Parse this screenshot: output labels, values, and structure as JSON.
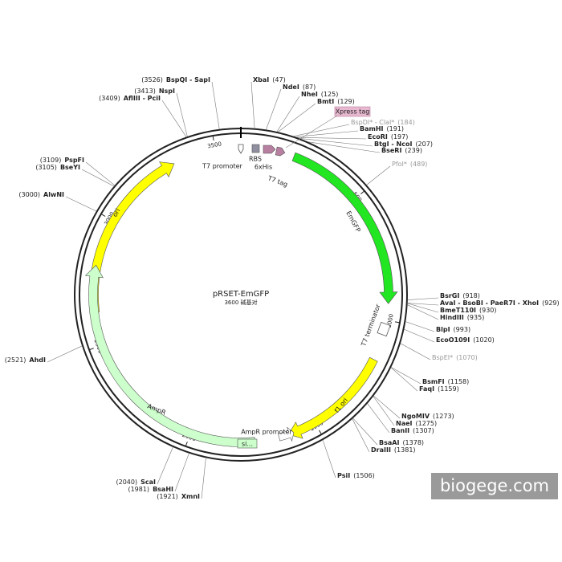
{
  "title": "pRSET-EmGFP",
  "size_label": "3600 碱基对",
  "length": 3600,
  "ticks": [
    500,
    1000,
    1500,
    2000,
    2500,
    3000,
    3500
  ],
  "features": [
    "T7 promoter",
    "RBS",
    "6xHis",
    "T7 tag",
    "Xpress tag",
    "EmGFP",
    "T7 terminator",
    "f1 ori",
    "AmpR promoter",
    "AmpR",
    "si...",
    "ori"
  ],
  "sites": [
    {
      "name": "XbaI",
      "position": "(47)"
    },
    {
      "name": "NdeI",
      "position": "(87)"
    },
    {
      "name": "NheI",
      "position": "(125)"
    },
    {
      "name": "BmtI",
      "position": "(129)"
    },
    {
      "name": "BspDI* - ClaI*",
      "position": "(184)",
      "color": "#999999"
    },
    {
      "name": "BamHI",
      "position": "(191)"
    },
    {
      "name": "EcoRI",
      "position": "(197)"
    },
    {
      "name": "BtgI - NcoI",
      "position": "(207)"
    },
    {
      "name": "BseRI",
      "position": "(239)"
    },
    {
      "name": "PfoI*",
      "position": "(489)",
      "color": "#999999"
    },
    {
      "name": "BsrGI",
      "position": "(918)"
    },
    {
      "name": "AvaI - BsoBI - PaeR7I - XhoI",
      "position": "(929)"
    },
    {
      "name": "BmeT110I",
      "position": "(930)"
    },
    {
      "name": "HindIII",
      "position": "(935)"
    },
    {
      "name": "BlpI",
      "position": "(993)"
    },
    {
      "name": "EcoO109I",
      "position": "(1020)"
    },
    {
      "name": "BspEI*",
      "position": "(1070)",
      "color": "#999999"
    },
    {
      "name": "BsmFI",
      "position": "(1158)"
    },
    {
      "name": "FaqI",
      "position": "(1159)"
    },
    {
      "name": "NgoMIV",
      "position": "(1273)"
    },
    {
      "name": "NaeI",
      "position": "(1275)"
    },
    {
      "name": "BanII",
      "position": "(1307)"
    },
    {
      "name": "BsaAI",
      "position": "(1378)"
    },
    {
      "name": "DraIII",
      "position": "(1381)"
    },
    {
      "name": "PsiI",
      "position": "(1506)"
    },
    {
      "name": "XmnI",
      "position": "(1921)"
    },
    {
      "name": "BsaHI",
      "position": "(1981)"
    },
    {
      "name": "ScaI",
      "position": "(2040)"
    },
    {
      "name": "AhdI",
      "position": "(2521)"
    },
    {
      "name": "AlwNI",
      "position": "(3000)"
    },
    {
      "name": "BseYI",
      "position": "(3105)"
    },
    {
      "name": "PspFI",
      "position": "(3109)"
    },
    {
      "name": "AflIII - PciI",
      "position": "(3409)"
    },
    {
      "name": "NspI",
      "position": "(3413)"
    },
    {
      "name": "BspQI - SapI",
      "position": "(3526)"
    }
  ],
  "watermark": "biogege.com"
}
